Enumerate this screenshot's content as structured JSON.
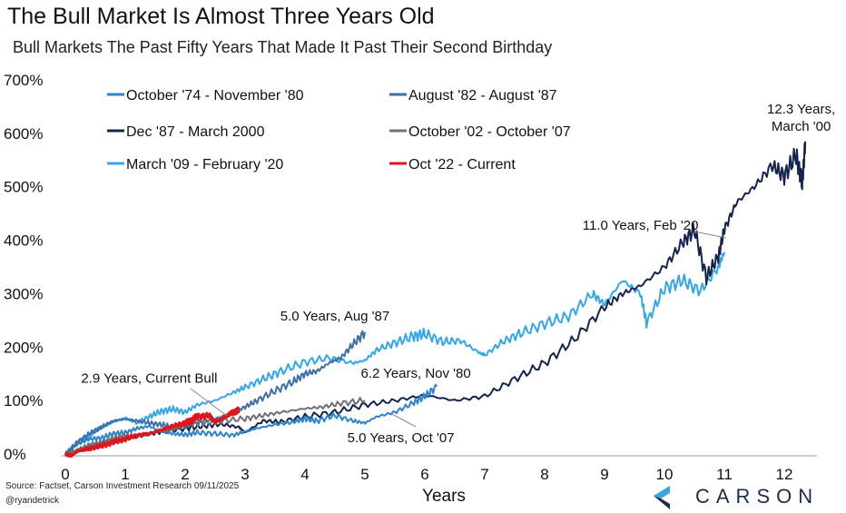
{
  "header": {
    "title": "The Bull Market Is Almost Three Years Old",
    "subtitle": "Bull Markets The Past Fifty Years That Made It Past Their Second Birthday"
  },
  "footer": {
    "source": "Source: Factset, Carson Investment Research 09/11/2025",
    "handle": "@ryandetrick",
    "logo_text": "CARSON"
  },
  "colors": {
    "s74": "#2d83cc",
    "s82": "#3e6fa6",
    "s87": "#13244f",
    "s02": "#6e7078",
    "s09": "#35a6ea",
    "s22": "#e0141c",
    "logo_dark": "#1a2e4a",
    "logo_light": "#3aa8e0"
  },
  "chart_data": {
    "type": "line",
    "title": "The Bull Market Is Almost Three Years Old",
    "subtitle": "Bull Markets The Past Fifty Years That Made It Past Their Second Birthday",
    "xlabel": "Years",
    "ylabel": "",
    "xlim": [
      0,
      12.5
    ],
    "ylim": [
      0,
      700
    ],
    "x_ticks": [
      "0",
      "1",
      "2",
      "3",
      "4",
      "5",
      "6",
      "7",
      "8",
      "9",
      "10",
      "11",
      "12"
    ],
    "y_ticks": [
      "0%",
      "100%",
      "200%",
      "300%",
      "400%",
      "500%",
      "600%",
      "700%"
    ],
    "grid": false,
    "legend": {
      "position": "top-left",
      "columns": 2
    },
    "series": [
      {
        "key": "s74",
        "name": "October '74 - November '80",
        "x": [
          0,
          0.2,
          0.4,
          0.6,
          0.8,
          1.0,
          1.2,
          1.4,
          1.6,
          1.8,
          2.0,
          2.2,
          2.5,
          2.8,
          3.0,
          3.2,
          3.5,
          3.8,
          4.0,
          4.2,
          4.5,
          4.8,
          5.0,
          5.2,
          5.5,
          5.8,
          6.0,
          6.2
        ],
        "values": [
          0,
          18,
          28,
          30,
          38,
          40,
          48,
          52,
          42,
          38,
          36,
          40,
          38,
          35,
          42,
          48,
          55,
          60,
          66,
          62,
          72,
          62,
          58,
          70,
          78,
          95,
          108,
          126
        ]
      },
      {
        "key": "s82",
        "name": "August '82 - August '87",
        "x": [
          0,
          0.2,
          0.4,
          0.6,
          0.8,
          1.0,
          1.2,
          1.4,
          1.6,
          1.8,
          2.0,
          2.2,
          2.5,
          2.8,
          3.0,
          3.2,
          3.5,
          3.8,
          4.0,
          4.2,
          4.4,
          4.6,
          4.8,
          5.0
        ],
        "values": [
          0,
          22,
          38,
          50,
          62,
          65,
          62,
          58,
          55,
          50,
          52,
          60,
          66,
          78,
          88,
          100,
          118,
          135,
          150,
          155,
          170,
          180,
          205,
          228
        ]
      },
      {
        "key": "s87",
        "name": "Dec '87 - March 2000",
        "x": [
          0,
          0.3,
          0.6,
          1.0,
          1.3,
          1.6,
          2.0,
          2.3,
          2.6,
          2.9,
          3.0,
          3.3,
          3.6,
          4.0,
          4.5,
          5.0,
          5.5,
          6.0,
          6.5,
          7.0,
          7.5,
          8.0,
          8.5,
          9.0,
          9.3,
          9.6,
          10.0,
          10.3,
          10.5,
          10.7,
          10.9,
          11.0,
          11.2,
          11.5,
          11.8,
          12.0,
          12.2,
          12.3,
          12.35
        ],
        "values": [
          0,
          10,
          22,
          28,
          35,
          42,
          48,
          52,
          56,
          50,
          40,
          62,
          60,
          70,
          78,
          92,
          100,
          110,
          100,
          108,
          140,
          170,
          215,
          275,
          300,
          315,
          350,
          395,
          420,
          330,
          370,
          420,
          470,
          500,
          540,
          520,
          560,
          505,
          585
        ]
      },
      {
        "key": "s02",
        "name": "October '02 - October '07",
        "x": [
          0,
          0.2,
          0.4,
          0.6,
          0.8,
          1.0,
          1.2,
          1.5,
          1.8,
          2.0,
          2.3,
          2.6,
          3.0,
          3.3,
          3.6,
          4.0,
          4.3,
          4.6,
          5.0
        ],
        "values": [
          0,
          8,
          18,
          22,
          30,
          35,
          34,
          40,
          45,
          55,
          58,
          62,
          66,
          72,
          78,
          85,
          88,
          95,
          100
        ]
      },
      {
        "key": "s09",
        "name": "March '09 - February '20",
        "x": [
          0,
          0.2,
          0.4,
          0.6,
          0.8,
          1.0,
          1.2,
          1.4,
          1.6,
          1.8,
          2.0,
          2.2,
          2.5,
          2.8,
          3.0,
          3.3,
          3.6,
          4.0,
          4.4,
          4.8,
          5.0,
          5.2,
          5.5,
          5.8,
          6.0,
          6.3,
          6.6,
          6.9,
          7.0,
          7.3,
          7.6,
          8.0,
          8.4,
          8.8,
          9.0,
          9.3,
          9.6,
          9.7,
          10.0,
          10.3,
          10.6,
          10.9,
          11.0
        ],
        "values": [
          0,
          20,
          35,
          50,
          60,
          68,
          58,
          70,
          80,
          84,
          78,
          92,
          100,
          115,
          125,
          140,
          155,
          172,
          180,
          170,
          175,
          195,
          208,
          220,
          225,
          210,
          212,
          190,
          185,
          210,
          226,
          244,
          258,
          300,
          280,
          325,
          300,
          245,
          310,
          325,
          305,
          350,
          378
        ]
      },
      {
        "key": "s22",
        "name": "Oct '22 - Current",
        "x": [
          0,
          0.1,
          0.2,
          0.3,
          0.4,
          0.6,
          0.8,
          1.0,
          1.2,
          1.4,
          1.6,
          1.8,
          2.0,
          2.1,
          2.2,
          2.4,
          2.5,
          2.6,
          2.7,
          2.8,
          2.9
        ],
        "values": [
          0,
          -3,
          5,
          8,
          10,
          15,
          22,
          28,
          35,
          38,
          45,
          52,
          58,
          62,
          70,
          72,
          60,
          65,
          72,
          78,
          82
        ]
      }
    ],
    "annotations": [
      {
        "label": "12.3 Years,",
        "label2": "March '00",
        "x": 12.1,
        "y": 620
      },
      {
        "label": "11.0 Years, Feb '20",
        "x": 9.6,
        "y": 420
      },
      {
        "label": "5.0 Years, Aug '87",
        "x": 4.5,
        "y": 250
      },
      {
        "label": "6.2 Years, Nov '80",
        "x": 5.85,
        "y": 143
      },
      {
        "label": "2.9 Years, Current Bull",
        "x": 1.4,
        "y": 133
      },
      {
        "label": "5.0 Years, Oct '07",
        "x": 5.6,
        "y": 22
      }
    ]
  }
}
